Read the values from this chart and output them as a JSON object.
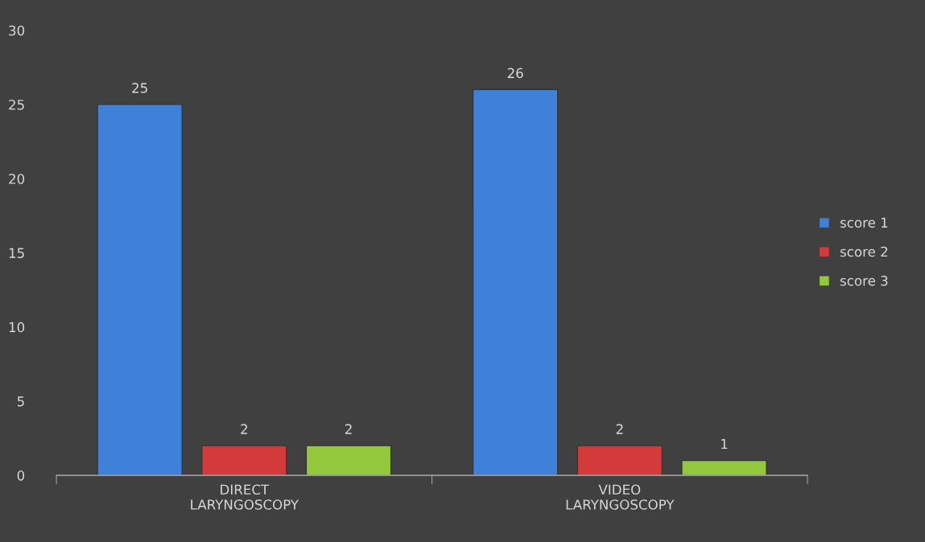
{
  "chart_data": {
    "type": "bar",
    "categories": [
      "DIRECT\nLARYNGOSCOPY",
      "VIDEO\nLARYNGOSCOPY"
    ],
    "series": [
      {
        "name": "score 1",
        "color": "#3f80d8",
        "values": [
          25,
          26
        ]
      },
      {
        "name": "score 2",
        "color": "#d33b3b",
        "values": [
          2,
          2
        ]
      },
      {
        "name": "score 3",
        "color": "#94c83c",
        "values": [
          2,
          1
        ]
      }
    ],
    "ylim": [
      0,
      30
    ],
    "yticks": [
      0,
      5,
      10,
      15,
      20,
      25,
      30
    ],
    "data_labels": true,
    "legend": "right",
    "grid": false
  }
}
